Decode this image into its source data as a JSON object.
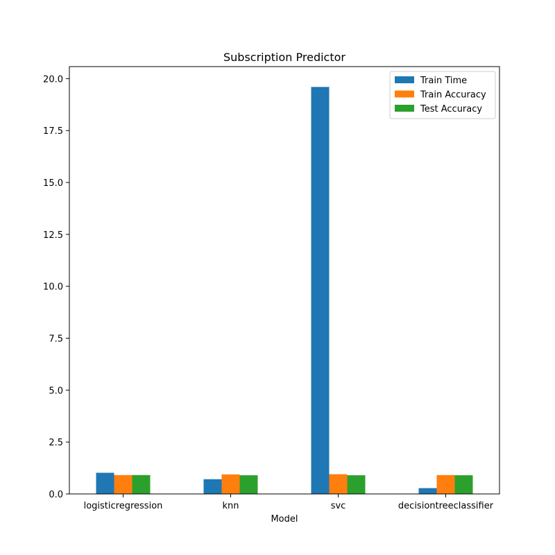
{
  "chart_data": {
    "type": "bar",
    "title": "Subscription Predictor",
    "xlabel": "Model",
    "ylabel": "",
    "categories": [
      "logisticregression",
      "knn",
      "svc",
      "decisiontreeclassifier"
    ],
    "series": [
      {
        "name": "Train Time",
        "color": "#1f77b4",
        "values": [
          1.02,
          0.71,
          19.6,
          0.28
        ]
      },
      {
        "name": "Train Accuracy",
        "color": "#ff7f0e",
        "values": [
          0.91,
          0.94,
          0.95,
          0.91
        ]
      },
      {
        "name": "Test Accuracy",
        "color": "#2ca02c",
        "values": [
          0.91,
          0.9,
          0.9,
          0.9
        ]
      }
    ],
    "ylim": [
      0,
      20.58
    ],
    "yticks": [
      "0.0",
      "2.5",
      "5.0",
      "7.5",
      "10.0",
      "12.5",
      "15.0",
      "17.5",
      "20.0"
    ],
    "grid": false,
    "legend_position": "top-right"
  }
}
